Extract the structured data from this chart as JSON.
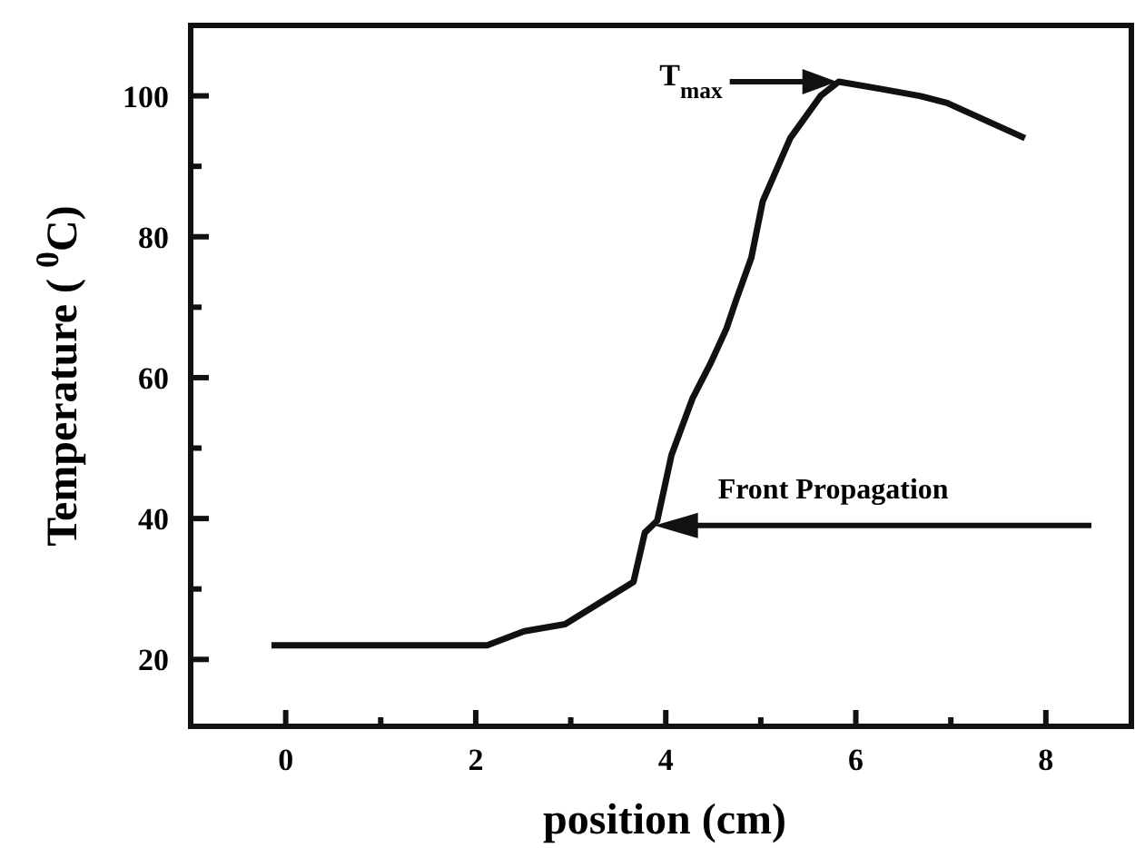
{
  "chart_data": {
    "type": "line",
    "xlabel": "position (cm)",
    "ylabel": "Temperature ( $^{0}$C)",
    "xlim": [
      -1,
      8.9
    ],
    "ylim": [
      10.5,
      110
    ],
    "xticks": [
      0,
      {
        "value": 1,
        "label": null
      },
      2,
      {
        "value": 3,
        "label": null
      },
      4,
      {
        "value": 5,
        "label": null
      },
      6,
      {
        "value": 7,
        "label": null
      },
      8
    ],
    "yticks": [
      20,
      {
        "value": 30,
        "label": null
      },
      40,
      {
        "value": 50,
        "label": null
      },
      60,
      {
        "value": 70,
        "label": null
      },
      80,
      {
        "value": 90,
        "label": null
      },
      100
    ],
    "grid": false,
    "marker": "none",
    "line_style": "solid",
    "series": [
      {
        "color": "#111111",
        "x": [
          -0.15,
          2.12,
          2.51,
          2.94,
          3.66,
          3.78,
          3.91,
          4.06,
          4.28,
          4.47,
          4.64,
          4.74,
          4.9,
          5.02,
          5.31,
          5.63,
          5.82,
          6.26,
          6.67,
          6.96,
          7.78
        ],
        "values": [
          22,
          22,
          24,
          25,
          31,
          38,
          39.7,
          49,
          57,
          62,
          67,
          71,
          77,
          85,
          94,
          100,
          102,
          101,
          100,
          99,
          94
        ]
      }
    ],
    "annotations": [
      "T$_{max}$",
      {
        "text": "Front Propagation",
        "x": 3.88,
        "y": 39
      }
    ]
  }
}
